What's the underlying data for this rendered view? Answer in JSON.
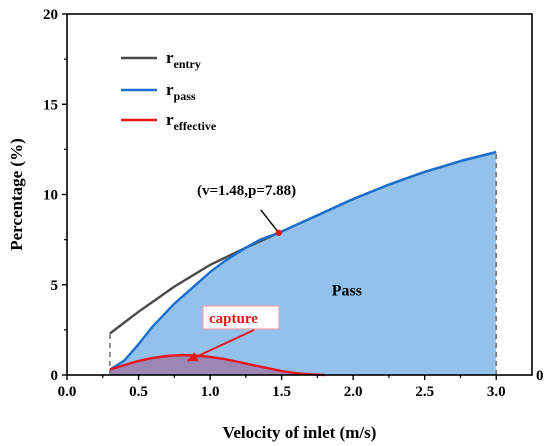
{
  "chart_data": {
    "type": "area",
    "xlabel": "Velocity of inlet (m/s)",
    "ylabel": "Percentage (%)",
    "xlim": [
      0.0,
      3.25
    ],
    "ylim": [
      0,
      20
    ],
    "x_ticks": [
      "0.0",
      "0.5",
      "1.0",
      "1.5",
      "2.0",
      "2.5",
      "3.0"
    ],
    "y_ticks": [
      "0",
      "5",
      "10",
      "15",
      "20"
    ],
    "right_axis_ticks": [
      "0"
    ],
    "grid": false,
    "legend_position": "top-left",
    "series": [
      {
        "name": "r",
        "name_subscript": "entry",
        "color": "#4a4a4a",
        "x": [
          0.3,
          0.5,
          0.75,
          1.0,
          1.25,
          1.48,
          1.75,
          2.0,
          2.25,
          2.5,
          2.75,
          3.0
        ],
        "values": [
          2.3,
          3.5,
          4.9,
          6.1,
          7.05,
          7.88,
          8.85,
          9.75,
          10.55,
          11.25,
          11.85,
          12.35
        ]
      },
      {
        "name": "r",
        "name_subscript": "pass",
        "color": "#1a6fd1",
        "fill": "#92c2ec",
        "x": [
          0.3,
          0.4,
          0.5,
          0.6,
          0.75,
          0.9,
          1.0,
          1.1,
          1.25,
          1.35,
          1.48,
          1.75,
          2.0,
          2.25,
          2.5,
          2.75,
          3.0
        ],
        "values": [
          0.3,
          0.8,
          1.7,
          2.7,
          3.95,
          5.0,
          5.7,
          6.3,
          7.05,
          7.5,
          7.88,
          8.85,
          9.75,
          10.55,
          11.25,
          11.85,
          12.35
        ]
      },
      {
        "name": "r",
        "name_subscript": "effective",
        "color": "#e8161c",
        "fill": "#9b86b6",
        "x": [
          0.3,
          0.4,
          0.5,
          0.6,
          0.7,
          0.8,
          0.9,
          1.0,
          1.1,
          1.2,
          1.3,
          1.4,
          1.5,
          1.6,
          1.7,
          1.8
        ],
        "values": [
          0.3,
          0.55,
          0.78,
          0.95,
          1.05,
          1.1,
          1.08,
          1.0,
          0.88,
          0.72,
          0.55,
          0.38,
          0.22,
          0.1,
          0.04,
          0.0
        ]
      }
    ],
    "annotations": {
      "point_label": "(v=1.48,p=7.88)",
      "point": {
        "x": 1.48,
        "y": 7.88
      },
      "point_color": "#e8161c",
      "region_label": "Pass",
      "region_anchor": {
        "x": 1.85,
        "y": 4.4
      },
      "capture_label": "capture",
      "capture_color": "#e8161c",
      "capture_anchor": {
        "x": 0.8,
        "y": 0.45
      },
      "dashed_boundaries_x": [
        0.3,
        3.0
      ]
    }
  }
}
